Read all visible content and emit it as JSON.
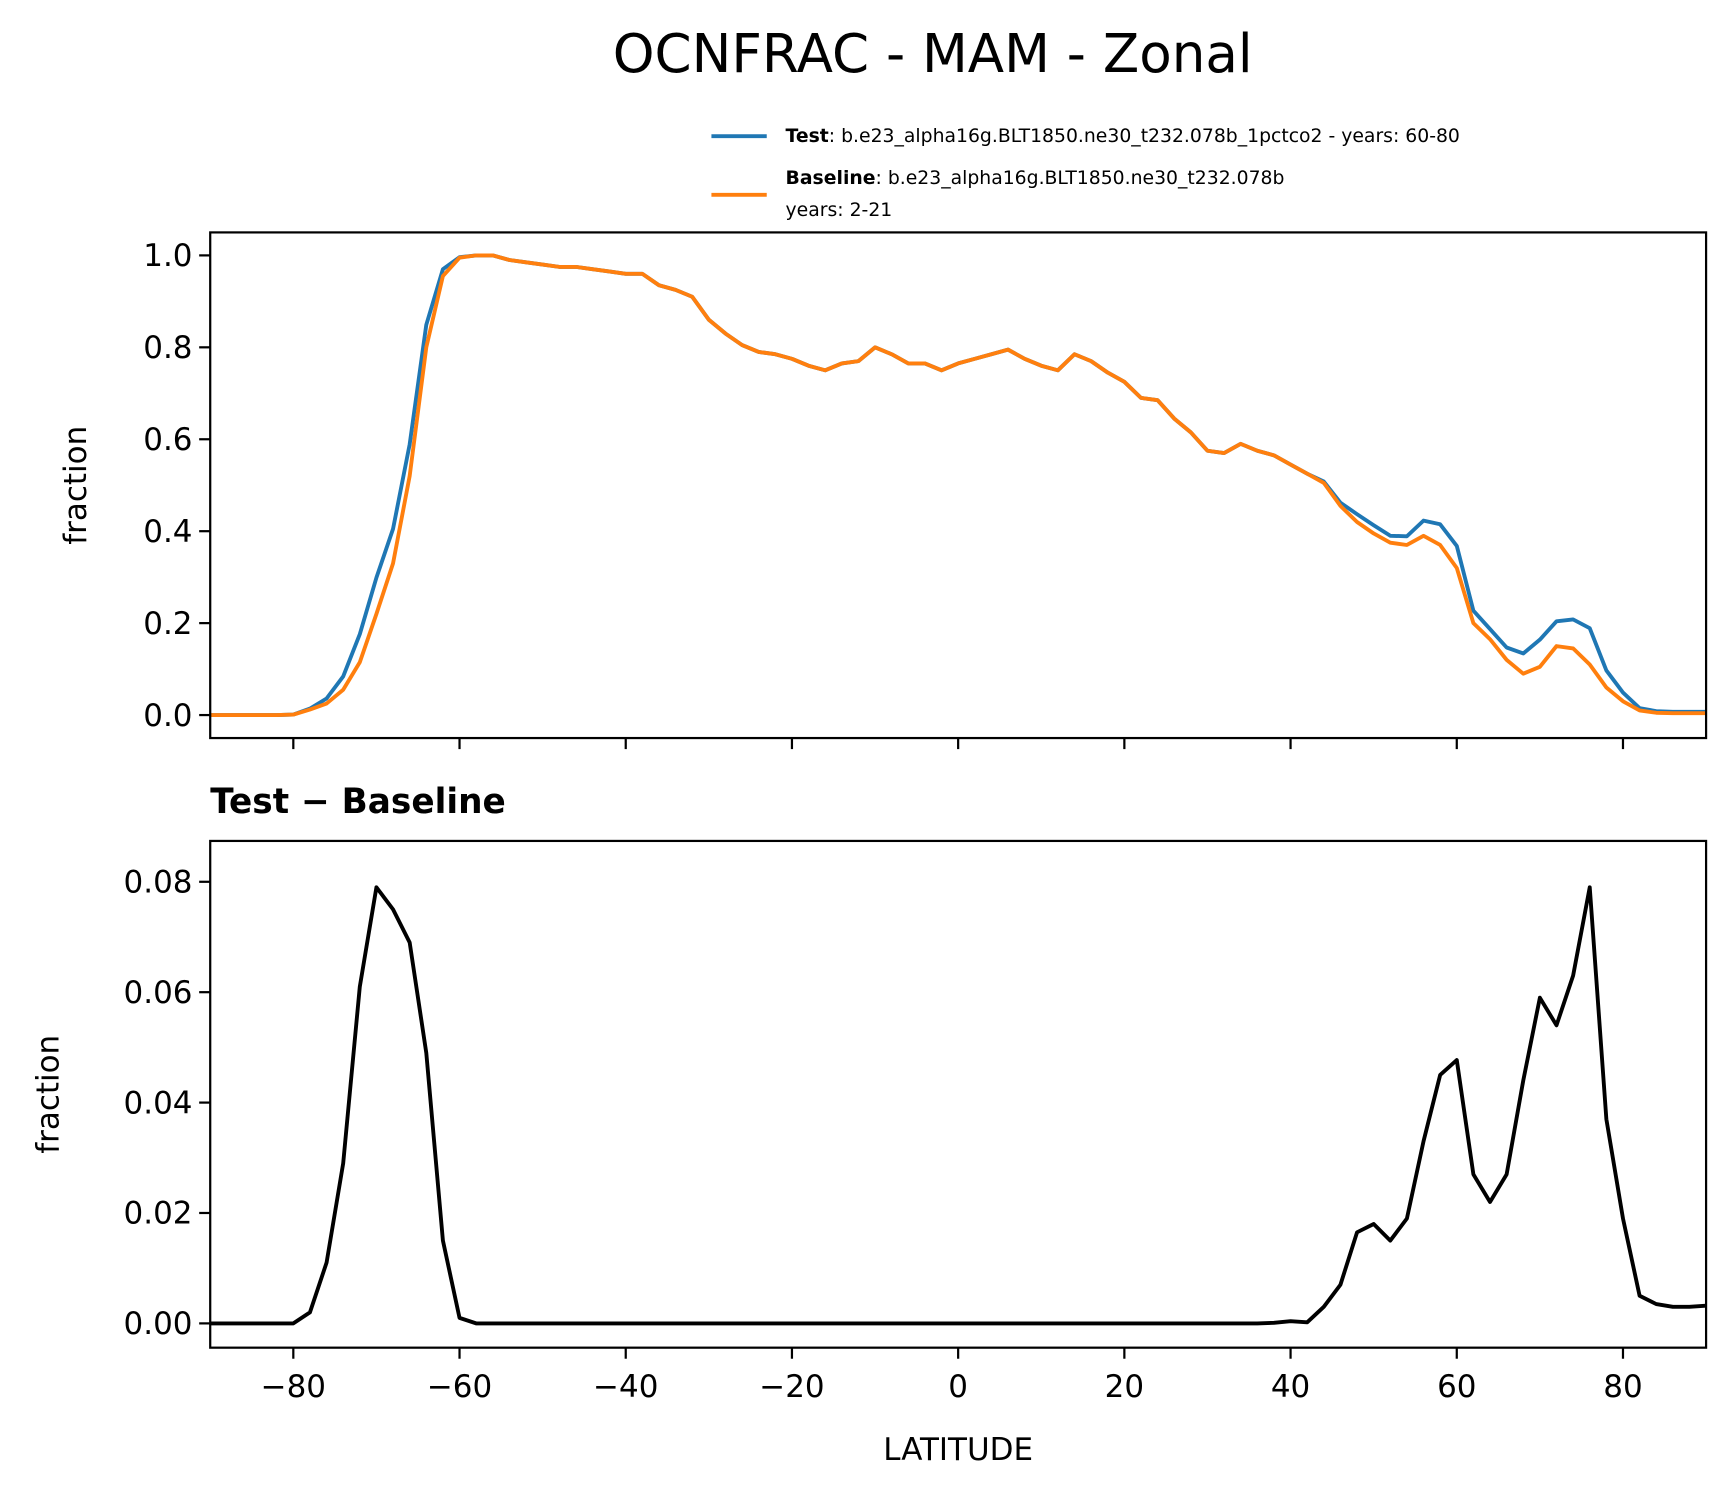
{
  "title": "OCNFRAC - MAM - Zonal",
  "chart_data": [
    {
      "type": "line",
      "ylabel": "fraction",
      "x": [
        -90,
        -88,
        -86,
        -84,
        -82,
        -80,
        -78,
        -76,
        -74,
        -72,
        -70,
        -68,
        -66,
        -64,
        -62,
        -60,
        -58,
        -56,
        -54,
        -52,
        -50,
        -48,
        -46,
        -44,
        -42,
        -40,
        -38,
        -36,
        -34,
        -32,
        -30,
        -28,
        -26,
        -24,
        -22,
        -20,
        -18,
        -16,
        -14,
        -12,
        -10,
        -8,
        -6,
        -4,
        -2,
        0,
        2,
        4,
        6,
        8,
        10,
        12,
        14,
        16,
        18,
        20,
        22,
        24,
        26,
        28,
        30,
        32,
        34,
        36,
        38,
        40,
        42,
        44,
        46,
        48,
        50,
        52,
        54,
        56,
        58,
        60,
        62,
        64,
        66,
        68,
        70,
        72,
        74,
        76,
        78,
        80,
        82,
        84,
        86,
        88,
        90
      ],
      "series": [
        {
          "name": "Test",
          "description": [
            ": b.e23_alpha16g.BLT1850.ne30_t232.078b_1pctco2 - years: 60-80"
          ],
          "color": "#1f77b4",
          "values": [
            0,
            0,
            0,
            0,
            0,
            0.001,
            0.014,
            0.036,
            0.084,
            0.176,
            0.299,
            0.405,
            0.589,
            0.849,
            0.97,
            0.996,
            1.0,
            1.0,
            0.99,
            0.985,
            0.98,
            0.975,
            0.975,
            0.97,
            0.965,
            0.96,
            0.96,
            0.935,
            0.925,
            0.91,
            0.86,
            0.83,
            0.805,
            0.79,
            0.785,
            0.775,
            0.76,
            0.75,
            0.765,
            0.77,
            0.8,
            0.785,
            0.765,
            0.765,
            0.75,
            0.765,
            0.775,
            0.785,
            0.795,
            0.775,
            0.76,
            0.75,
            0.785,
            0.77,
            0.745,
            0.725,
            0.69,
            0.685,
            0.645,
            0.615,
            0.575,
            0.57,
            0.59,
            0.575,
            0.565,
            0.545,
            0.525,
            0.508,
            0.462,
            0.437,
            0.413,
            0.39,
            0.389,
            0.423,
            0.415,
            0.368,
            0.227,
            0.187,
            0.147,
            0.134,
            0.164,
            0.204,
            0.208,
            0.189,
            0.097,
            0.049,
            0.015,
            0.0085,
            0.007,
            0.007,
            0.0072
          ]
        },
        {
          "name": "Baseline",
          "description": [
            ": b.e23_alpha16g.BLT1850.ne30_t232.078b",
            "years: 2-21"
          ],
          "color": "#ff7f0e",
          "values": [
            0,
            0,
            0,
            0,
            0,
            0.001,
            0.012,
            0.025,
            0.055,
            0.115,
            0.22,
            0.33,
            0.52,
            0.8,
            0.955,
            0.995,
            1.0,
            1.0,
            0.99,
            0.985,
            0.98,
            0.975,
            0.975,
            0.97,
            0.965,
            0.96,
            0.96,
            0.935,
            0.925,
            0.91,
            0.86,
            0.83,
            0.805,
            0.79,
            0.785,
            0.775,
            0.76,
            0.75,
            0.765,
            0.77,
            0.8,
            0.785,
            0.765,
            0.765,
            0.75,
            0.765,
            0.775,
            0.785,
            0.795,
            0.775,
            0.76,
            0.75,
            0.785,
            0.77,
            0.745,
            0.725,
            0.69,
            0.685,
            0.645,
            0.615,
            0.575,
            0.57,
            0.59,
            0.575,
            0.565,
            0.545,
            0.525,
            0.505,
            0.455,
            0.42,
            0.395,
            0.375,
            0.37,
            0.39,
            0.37,
            0.32,
            0.2,
            0.165,
            0.12,
            0.09,
            0.105,
            0.15,
            0.145,
            0.11,
            0.06,
            0.03,
            0.01,
            0.005,
            0.004,
            0.004,
            0.004
          ]
        }
      ],
      "xlim": [
        -90,
        90
      ],
      "xticks": [
        {
          "value": -80,
          "label": "−80"
        },
        {
          "value": -60,
          "label": "−60"
        },
        {
          "value": -40,
          "label": "−40"
        },
        {
          "value": -20,
          "label": "−20"
        },
        0,
        20,
        40,
        60,
        80
      ],
      "xtick_labels": false,
      "ylim": [
        -0.05,
        1.05
      ],
      "yticks": [
        {
          "value": 0,
          "label": "0.0"
        },
        0.2,
        0.4,
        0.6,
        0.8,
        {
          "value": 1,
          "label": "1.0"
        }
      ],
      "grid": false
    },
    {
      "type": "line",
      "title": "Test − Baseline",
      "xlabel": "LATITUDE",
      "ylabel": "fraction",
      "x": [
        -90,
        -88,
        -86,
        -84,
        -82,
        -80,
        -78,
        -76,
        -74,
        -72,
        -70,
        -68,
        -66,
        -64,
        -62,
        -60,
        -58,
        -56,
        -54,
        -52,
        -50,
        -48,
        -46,
        -44,
        -42,
        -40,
        -38,
        -36,
        -34,
        -32,
        -30,
        -28,
        -26,
        -24,
        -22,
        -20,
        -18,
        -16,
        -14,
        -12,
        -10,
        -8,
        -6,
        -4,
        -2,
        0,
        2,
        4,
        6,
        8,
        10,
        12,
        14,
        16,
        18,
        20,
        22,
        24,
        26,
        28,
        30,
        32,
        34,
        36,
        38,
        40,
        42,
        44,
        46,
        48,
        50,
        52,
        54,
        56,
        58,
        60,
        62,
        64,
        66,
        68,
        70,
        72,
        74,
        76,
        78,
        80,
        82,
        84,
        86,
        88,
        90
      ],
      "values": [
        0,
        0,
        0,
        0,
        0,
        0,
        0.002,
        0.011,
        0.029,
        0.061,
        0.079,
        0.075,
        0.069,
        0.049,
        0.015,
        0.001,
        0,
        0,
        0,
        0,
        0,
        0,
        0,
        0,
        0,
        0,
        0,
        0,
        0,
        0,
        0,
        0,
        0,
        0,
        0,
        0,
        0,
        0,
        0,
        0,
        0,
        0,
        0,
        0,
        0,
        0,
        0,
        0,
        0,
        0,
        0,
        0,
        0,
        0,
        0,
        0,
        0,
        0,
        0,
        0,
        0,
        0,
        0,
        0,
        0.0001,
        0.0004,
        0.0002,
        0.003,
        0.007,
        0.0165,
        0.018,
        0.015,
        0.019,
        0.033,
        0.045,
        0.0477,
        0.027,
        0.022,
        0.027,
        0.044,
        0.059,
        0.054,
        0.063,
        0.079,
        0.037,
        0.019,
        0.005,
        0.0035,
        0.003,
        0.003,
        0.0032
      ],
      "color": "#000000",
      "xlim": [
        -90,
        90
      ],
      "xticks": [
        {
          "value": -80,
          "label": "−80"
        },
        {
          "value": -60,
          "label": "−60"
        },
        {
          "value": -40,
          "label": "−40"
        },
        {
          "value": -20,
          "label": "−20"
        },
        0,
        20,
        40,
        60,
        80
      ],
      "xtick_labels": true,
      "ylim": [
        -0.0044,
        0.0874
      ],
      "yticks": [
        {
          "value": 0,
          "label": "0.00"
        },
        {
          "value": 0.02,
          "label": "0.02"
        },
        {
          "value": 0.04,
          "label": "0.04"
        },
        {
          "value": 0.06,
          "label": "0.06"
        },
        {
          "value": 0.08,
          "label": "0.08"
        }
      ],
      "grid": false
    }
  ]
}
